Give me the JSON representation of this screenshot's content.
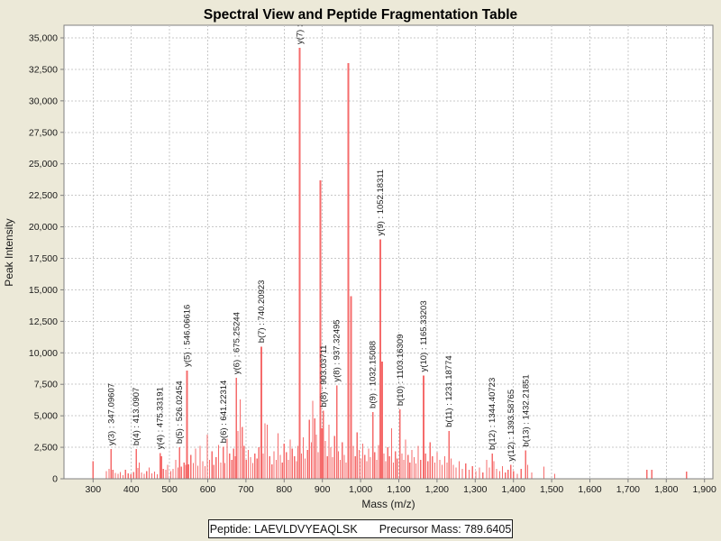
{
  "info_panel": {
    "peptide": "Peptide: LAEVLDVYEAQLSK",
    "precursor_mass": "Precursor Mass: 789.6405"
  },
  "chart_data": {
    "type": "bar",
    "subtype": "mass-spectrum-stick-plot",
    "title": "Spectral View and Peptide Fragmentation Table",
    "xlabel": "Mass (m/z)",
    "ylabel": "Peak Intensity",
    "xlim": [
      300,
      1900
    ],
    "ylim": [
      0,
      35000
    ],
    "grid": "dashed",
    "x_ticks": [
      "300",
      "400",
      "500",
      "600",
      "700",
      "800",
      "900",
      "1,000",
      "1,100",
      "1,200",
      "1,300",
      "1,400",
      "1,500",
      "1,600",
      "1,700",
      "1,800",
      "1,900"
    ],
    "y_ticks": [
      "0",
      "2,500",
      "5,000",
      "7,500",
      "10,000",
      "12,500",
      "15,000",
      "17,500",
      "20,000",
      "22,500",
      "25,000",
      "27,500",
      "30,000",
      "32,500",
      "35,000"
    ],
    "colors": {
      "peak": "#f56b6b",
      "grid": "#c8c8c8",
      "plot_bg": "#ffffff",
      "page_bg": "#ece9d8",
      "axis": "#808080",
      "text": "#1a1a1a"
    },
    "labeled_peaks": [
      {
        "ion": "y3",
        "label": "y(3) : 347.09607",
        "mz": 347.09607,
        "intensity": 2350
      },
      {
        "ion": "b4",
        "label": "b(4) : 413.0907",
        "mz": 413.0907,
        "intensity": 2350
      },
      {
        "ion": "y4",
        "label": "y(4) : 475.33191",
        "mz": 475.33191,
        "intensity": 2050
      },
      {
        "ion": "b5",
        "label": "b(5) : 526.02454",
        "mz": 526.02454,
        "intensity": 2500
      },
      {
        "ion": "y5",
        "label": "y(5) : 546.06616",
        "mz": 546.06616,
        "intensity": 8600
      },
      {
        "ion": "b6",
        "label": "b(6) : 641.22314",
        "mz": 641.22314,
        "intensity": 2550
      },
      {
        "ion": "y6",
        "label": "y(6) : 675.25244",
        "mz": 675.25244,
        "intensity": 8000
      },
      {
        "ion": "b7",
        "label": "b(7) : 740.20923",
        "mz": 740.20923,
        "intensity": 10500
      },
      {
        "ion": "y7",
        "label": "y(7) :",
        "mz": 840.5,
        "intensity": 34200,
        "label_truncated": true
      },
      {
        "ion": "b8",
        "label": "b(8) : 903.03711",
        "mz": 903.03711,
        "intensity": 5400
      },
      {
        "ion": "y8",
        "label": "y(8) : 937.32495",
        "mz": 937.32495,
        "intensity": 7400
      },
      {
        "ion": "b9",
        "label": "b(9) : 1032.15088",
        "mz": 1032.15088,
        "intensity": 5300
      },
      {
        "ion": "y9",
        "label": "y(9) : 1052.18311",
        "mz": 1052.18311,
        "intensity": 19000
      },
      {
        "ion": "b10",
        "label": "b(10) : 1103.16309",
        "mz": 1103.16309,
        "intensity": 5500
      },
      {
        "ion": "y10",
        "label": "y(10) : 1165.33203",
        "mz": 1165.33203,
        "intensity": 8200
      },
      {
        "ion": "b11",
        "label": "b(11) : 1231.18774",
        "mz": 1231.18774,
        "intensity": 3800
      },
      {
        "ion": "b12",
        "label": "b(12) : 1344.40723",
        "mz": 1344.40723,
        "intensity": 2000
      },
      {
        "ion": "y12",
        "label": "y(12) : 1393.58765",
        "mz": 1393.58765,
        "intensity": 1100
      },
      {
        "ion": "b13",
        "label": "b(13) : 1432.21851",
        "mz": 1432.21851,
        "intensity": 2250
      }
    ],
    "unlabeled_peaks": [
      [
        300,
        1400
      ],
      [
        335,
        600
      ],
      [
        342,
        800
      ],
      [
        352,
        700
      ],
      [
        358,
        450
      ],
      [
        365,
        400
      ],
      [
        371,
        550
      ],
      [
        378,
        300
      ],
      [
        385,
        700
      ],
      [
        392,
        420
      ],
      [
        399,
        350
      ],
      [
        406,
        520
      ],
      [
        417,
        850
      ],
      [
        421,
        1300
      ],
      [
        427,
        500
      ],
      [
        434,
        380
      ],
      [
        440,
        620
      ],
      [
        447,
        900
      ],
      [
        454,
        420
      ],
      [
        461,
        560
      ],
      [
        468,
        360
      ],
      [
        479,
        1800
      ],
      [
        484,
        800
      ],
      [
        490,
        700
      ],
      [
        495,
        1100
      ],
      [
        503,
        620
      ],
      [
        509,
        800
      ],
      [
        516,
        1500
      ],
      [
        522,
        900
      ],
      [
        531,
        950
      ],
      [
        538,
        1300
      ],
      [
        543,
        1100
      ],
      [
        550,
        1150
      ],
      [
        556,
        1900
      ],
      [
        562,
        1250
      ],
      [
        568,
        2400
      ],
      [
        574,
        1050
      ],
      [
        580,
        2600
      ],
      [
        587,
        1400
      ],
      [
        593,
        1000
      ],
      [
        599,
        3500
      ],
      [
        605,
        1500
      ],
      [
        611,
        2200
      ],
      [
        616,
        1100
      ],
      [
        622,
        1700
      ],
      [
        628,
        2700
      ],
      [
        634,
        1300
      ],
      [
        645,
        1250
      ],
      [
        651,
        3200
      ],
      [
        657,
        2000
      ],
      [
        663,
        1500
      ],
      [
        668,
        2400
      ],
      [
        672,
        1800
      ],
      [
        679,
        3800
      ],
      [
        685,
        6300
      ],
      [
        690,
        4100
      ],
      [
        695,
        2600
      ],
      [
        701,
        1500
      ],
      [
        706,
        2300
      ],
      [
        712,
        1700
      ],
      [
        718,
        1250
      ],
      [
        723,
        2000
      ],
      [
        729,
        1600
      ],
      [
        734,
        2500
      ],
      [
        745,
        2000
      ],
      [
        750,
        4400
      ],
      [
        756,
        4300
      ],
      [
        762,
        1800
      ],
      [
        768,
        1150
      ],
      [
        773,
        2200
      ],
      [
        779,
        1500
      ],
      [
        784,
        3600
      ],
      [
        790,
        1900
      ],
      [
        795,
        1300
      ],
      [
        800,
        2800
      ],
      [
        806,
        2100
      ],
      [
        811,
        1500
      ],
      [
        816,
        3100
      ],
      [
        821,
        2400
      ],
      [
        827,
        1800
      ],
      [
        832,
        1400
      ],
      [
        836,
        2600
      ],
      [
        845,
        2000
      ],
      [
        850,
        3300
      ],
      [
        855,
        1600
      ],
      [
        861,
        2300
      ],
      [
        866,
        4700
      ],
      [
        871,
        2900
      ],
      [
        875,
        6200
      ],
      [
        880,
        4800
      ],
      [
        884,
        3500
      ],
      [
        889,
        2100
      ],
      [
        895,
        23700
      ],
      [
        899,
        4000
      ],
      [
        908,
        3000
      ],
      [
        913,
        1800
      ],
      [
        917,
        4300
      ],
      [
        922,
        2500
      ],
      [
        927,
        1700
      ],
      [
        932,
        3400
      ],
      [
        942,
        2200
      ],
      [
        947,
        1500
      ],
      [
        952,
        2900
      ],
      [
        957,
        1900
      ],
      [
        962,
        1300
      ],
      [
        968,
        33000
      ],
      [
        975,
        14500
      ],
      [
        981,
        2600
      ],
      [
        986,
        1800
      ],
      [
        991,
        3700
      ],
      [
        996,
        2300
      ],
      [
        1001,
        1600
      ],
      [
        1006,
        2800
      ],
      [
        1011,
        1900
      ],
      [
        1016,
        1400
      ],
      [
        1021,
        2400
      ],
      [
        1026,
        1700
      ],
      [
        1037,
        2100
      ],
      [
        1042,
        1500
      ],
      [
        1047,
        2700
      ],
      [
        1056,
        9300
      ],
      [
        1061,
        2000
      ],
      [
        1066,
        1400
      ],
      [
        1071,
        2500
      ],
      [
        1076,
        1800
      ],
      [
        1081,
        4000
      ],
      [
        1086,
        1300
      ],
      [
        1091,
        2200
      ],
      [
        1096,
        1600
      ],
      [
        1108,
        2000
      ],
      [
        1113,
        1500
      ],
      [
        1118,
        3100
      ],
      [
        1124,
        1900
      ],
      [
        1129,
        1300
      ],
      [
        1134,
        2300
      ],
      [
        1140,
        1700
      ],
      [
        1145,
        1200
      ],
      [
        1151,
        2600
      ],
      [
        1157,
        1500
      ],
      [
        1170,
        2000
      ],
      [
        1176,
        1400
      ],
      [
        1182,
        2900
      ],
      [
        1188,
        1800
      ],
      [
        1194,
        1300
      ],
      [
        1200,
        2100
      ],
      [
        1207,
        1500
      ],
      [
        1213,
        1100
      ],
      [
        1220,
        1800
      ],
      [
        1226,
        1300
      ],
      [
        1237,
        1600
      ],
      [
        1243,
        1100
      ],
      [
        1250,
        900
      ],
      [
        1258,
        1400
      ],
      [
        1266,
        800
      ],
      [
        1275,
        1200
      ],
      [
        1284,
        700
      ],
      [
        1293,
        1000
      ],
      [
        1302,
        600
      ],
      [
        1311,
        900
      ],
      [
        1320,
        500
      ],
      [
        1330,
        1500
      ],
      [
        1337,
        900
      ],
      [
        1349,
        1400
      ],
      [
        1356,
        800
      ],
      [
        1364,
        600
      ],
      [
        1371,
        1000
      ],
      [
        1379,
        500
      ],
      [
        1386,
        700
      ],
      [
        1400,
        600
      ],
      [
        1410,
        400
      ],
      [
        1420,
        800
      ],
      [
        1437,
        1100
      ],
      [
        1448,
        500
      ],
      [
        1480,
        970
      ],
      [
        1508,
        380
      ],
      [
        1749,
        730
      ],
      [
        1762,
        700
      ],
      [
        1853,
        570
      ]
    ]
  }
}
